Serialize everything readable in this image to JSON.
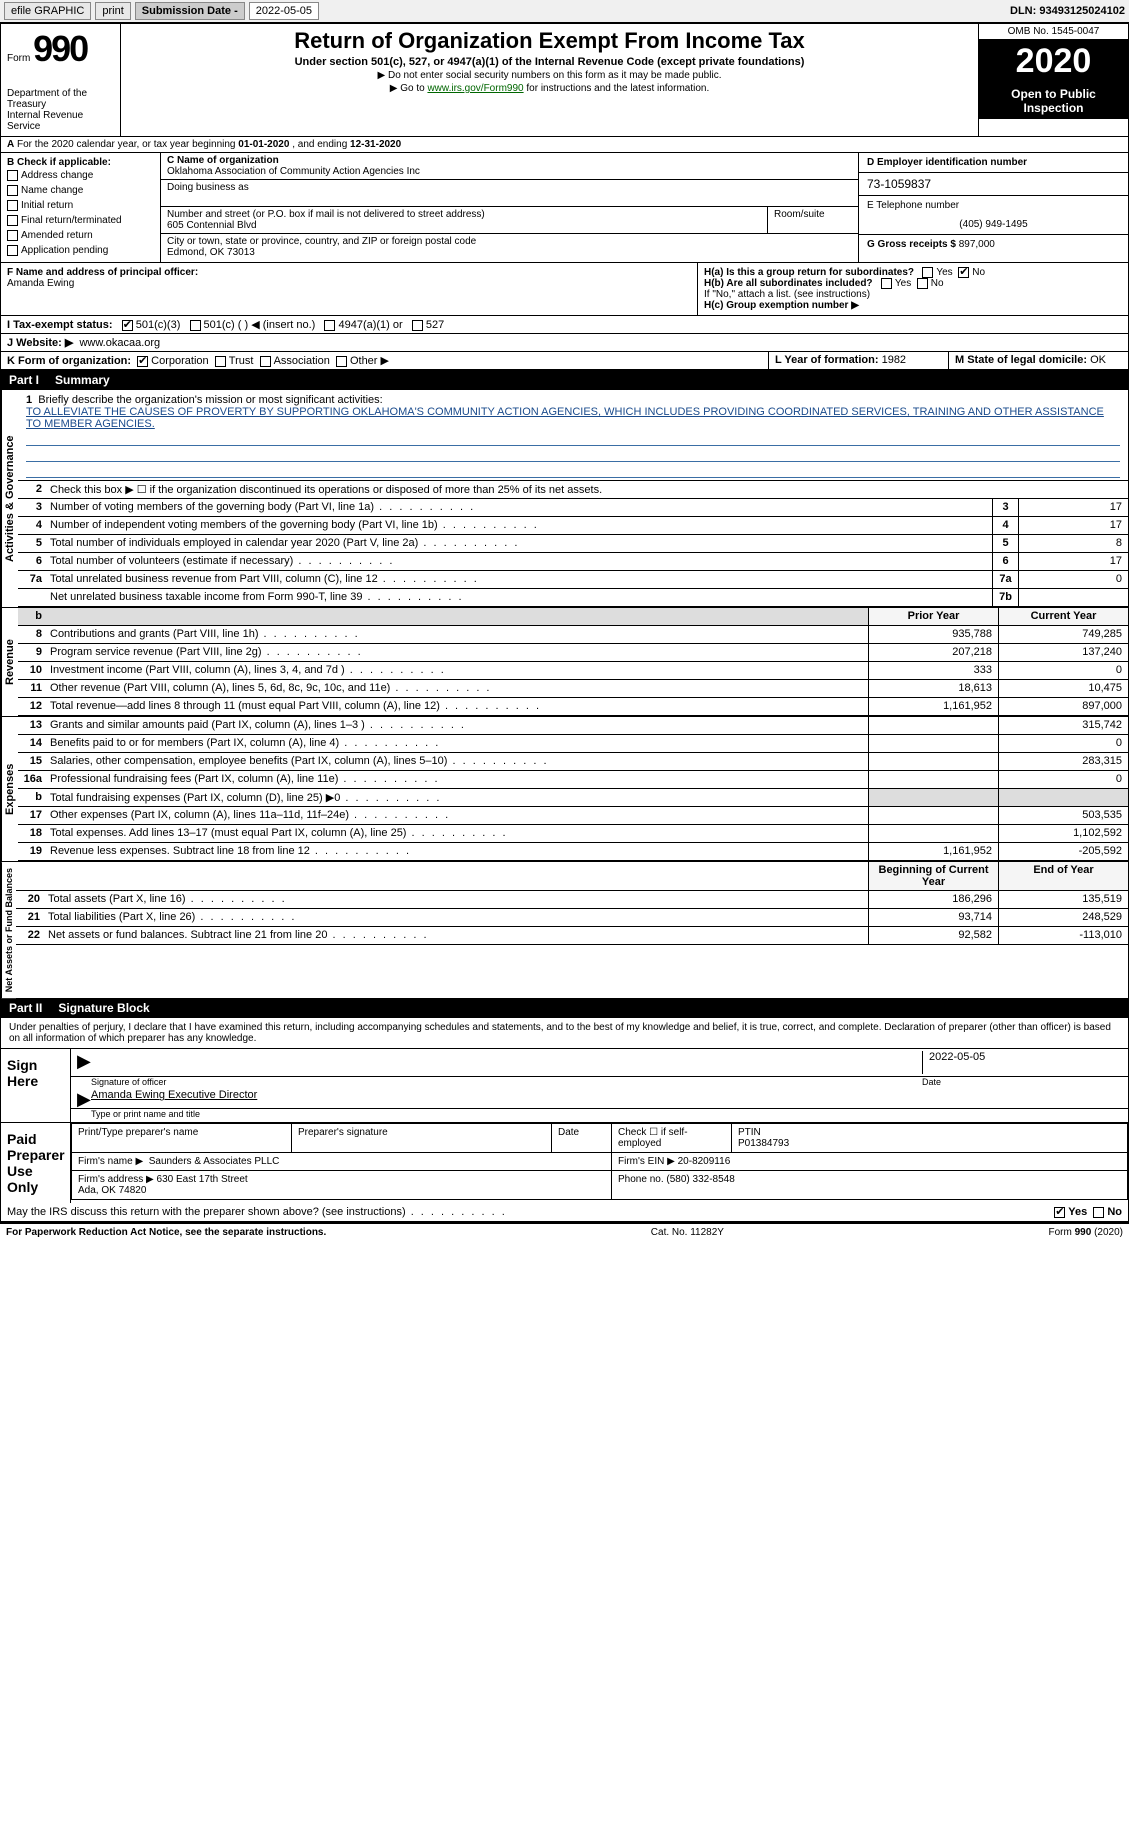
{
  "topbar": {
    "efile": "efile GRAPHIC",
    "print": "print",
    "sub_label": "Submission Date -",
    "sub_date": "2022-05-05",
    "dln_label": "DLN:",
    "dln": "93493125024102"
  },
  "header": {
    "form_word": "Form",
    "form_no": "990",
    "title": "Return of Organization Exempt From Income Tax",
    "subtitle": "Under section 501(c), 527, or 4947(a)(1) of the Internal Revenue Code (except private foundations)",
    "note1": "Do not enter social security numbers on this form as it may be made public.",
    "note2_pre": "Go to ",
    "note2_link": "www.irs.gov/Form990",
    "note2_post": " for instructions and the latest information.",
    "dept": "Department of the Treasury\nInternal Revenue Service",
    "omb": "OMB No. 1545-0047",
    "year": "2020",
    "inspect": "Open to Public Inspection"
  },
  "sectionA": {
    "text_pre": "For the 2020 calendar year, or tax year beginning ",
    "begin": "01-01-2020",
    "mid": " , and ending ",
    "end": "12-31-2020"
  },
  "boxB": {
    "label": "B Check if applicable:",
    "items": [
      "Address change",
      "Name change",
      "Initial return",
      "Final return/terminated",
      "Amended return",
      "Application pending"
    ]
  },
  "boxC": {
    "name_label": "C Name of organization",
    "name": "Oklahoma Association of Community Action Agencies Inc",
    "dba_label": "Doing business as",
    "dba": "",
    "street_label": "Number and street (or P.O. box if mail is not delivered to street address)",
    "room_label": "Room/suite",
    "street": "605 Contennial Blvd",
    "city_label": "City or town, state or province, country, and ZIP or foreign postal code",
    "city": "Edmond, OK  73013"
  },
  "boxD": {
    "label": "D Employer identification number",
    "ein": "73-1059837",
    "tel_label": "E Telephone number",
    "tel": "(405) 949-1495",
    "gross_label": "G Gross receipts $",
    "gross": "897,000"
  },
  "boxF": {
    "label": "F  Name and address of principal officer:",
    "name": "Amanda Ewing"
  },
  "boxH": {
    "a": "H(a)  Is this a group return for subordinates?",
    "b": "H(b)  Are all subordinates included?",
    "b_note": "If \"No,\" attach a list. (see instructions)",
    "c": "H(c)  Group exemption number ▶",
    "yes": "Yes",
    "no": "No"
  },
  "boxI": {
    "label": "I    Tax-exempt status:",
    "opts": [
      "501(c)(3)",
      "501(c) (   ) ◀ (insert no.)",
      "4947(a)(1) or",
      "527"
    ]
  },
  "boxJ": {
    "label": "J   Website: ▶",
    "val": "www.okacaa.org"
  },
  "boxK": {
    "label": "K Form of organization:",
    "opts": [
      "Corporation",
      "Trust",
      "Association",
      "Other ▶"
    ]
  },
  "boxL": {
    "label": "L Year of formation:",
    "val": "1982"
  },
  "boxM": {
    "label": "M State of legal domicile:",
    "val": "OK"
  },
  "part1": {
    "tab": "Part I",
    "title": "Summary",
    "gov_label": "Activities & Governance",
    "rev_label": "Revenue",
    "exp_label": "Expenses",
    "net_label": "Net Assets or Fund Balances",
    "q1_label": "Briefly describe the organization's mission or most significant activities:",
    "q1_text": "TO ALLEVIATE THE CAUSES OF PROVERTY BY SUPPORTING OKLAHOMA'S COMMUNITY ACTION AGENCIES, WHICH INCLUDES PROVIDING COORDINATED SERVICES, TRAINING AND OTHER ASSISTANCE TO MEMBER AGENCIES.",
    "q2": "Check this box ▶ ☐  if the organization discontinued its operations or disposed of more than 25% of its net assets.",
    "lines_gov": [
      {
        "n": "3",
        "t": "Number of voting members of the governing body (Part VI, line 1a)",
        "box": "3",
        "val": "17"
      },
      {
        "n": "4",
        "t": "Number of independent voting members of the governing body (Part VI, line 1b)",
        "box": "4",
        "val": "17"
      },
      {
        "n": "5",
        "t": "Total number of individuals employed in calendar year 2020 (Part V, line 2a)",
        "box": "5",
        "val": "8"
      },
      {
        "n": "6",
        "t": "Total number of volunteers (estimate if necessary)",
        "box": "6",
        "val": "17"
      },
      {
        "n": "7a",
        "t": "Total unrelated business revenue from Part VIII, column (C), line 12",
        "box": "7a",
        "val": "0"
      },
      {
        "n": "",
        "t": "Net unrelated business taxable income from Form 990-T, line 39",
        "box": "7b",
        "val": ""
      }
    ],
    "col_py": "Prior Year",
    "col_cy": "Current Year",
    "lines_rev": [
      {
        "n": "8",
        "t": "Contributions and grants (Part VIII, line 1h)",
        "py": "935,788",
        "cy": "749,285"
      },
      {
        "n": "9",
        "t": "Program service revenue (Part VIII, line 2g)",
        "py": "207,218",
        "cy": "137,240"
      },
      {
        "n": "10",
        "t": "Investment income (Part VIII, column (A), lines 3, 4, and 7d )",
        "py": "333",
        "cy": "0"
      },
      {
        "n": "11",
        "t": "Other revenue (Part VIII, column (A), lines 5, 6d, 8c, 9c, 10c, and 11e)",
        "py": "18,613",
        "cy": "10,475"
      },
      {
        "n": "12",
        "t": "Total revenue—add lines 8 through 11 (must equal Part VIII, column (A), line 12)",
        "py": "1,161,952",
        "cy": "897,000"
      }
    ],
    "lines_exp": [
      {
        "n": "13",
        "t": "Grants and similar amounts paid (Part IX, column (A), lines 1–3 )",
        "py": "",
        "cy": "315,742"
      },
      {
        "n": "14",
        "t": "Benefits paid to or for members (Part IX, column (A), line 4)",
        "py": "",
        "cy": "0"
      },
      {
        "n": "15",
        "t": "Salaries, other compensation, employee benefits (Part IX, column (A), lines 5–10)",
        "py": "",
        "cy": "283,315"
      },
      {
        "n": "16a",
        "t": "Professional fundraising fees (Part IX, column (A), line 11e)",
        "py": "",
        "cy": "0"
      },
      {
        "n": "b",
        "t": "Total fundraising expenses (Part IX, column (D), line 25) ▶0",
        "py": "shade",
        "cy": "shade"
      },
      {
        "n": "17",
        "t": "Other expenses (Part IX, column (A), lines 11a–11d, 11f–24e)",
        "py": "",
        "cy": "503,535"
      },
      {
        "n": "18",
        "t": "Total expenses. Add lines 13–17 (must equal Part IX, column (A), line 25)",
        "py": "",
        "cy": "1,102,592"
      },
      {
        "n": "19",
        "t": "Revenue less expenses. Subtract line 18 from line 12",
        "py": "1,161,952",
        "cy": "-205,592"
      }
    ],
    "col_boy": "Beginning of Current Year",
    "col_eoy": "End of Year",
    "lines_net": [
      {
        "n": "20",
        "t": "Total assets (Part X, line 16)",
        "py": "186,296",
        "cy": "135,519"
      },
      {
        "n": "21",
        "t": "Total liabilities (Part X, line 26)",
        "py": "93,714",
        "cy": "248,529"
      },
      {
        "n": "22",
        "t": "Net assets or fund balances. Subtract line 21 from line 20",
        "py": "92,582",
        "cy": "-113,010"
      }
    ]
  },
  "part2": {
    "tab": "Part II",
    "title": "Signature Block",
    "decl": "Under penalties of perjury, I declare that I have examined this return, including accompanying schedules and statements, and to the best of my knowledge and belief, it is true, correct, and complete. Declaration of preparer (other than officer) is based on all information of which preparer has any knowledge.",
    "sign_here": "Sign Here",
    "sig_officer": "Signature of officer",
    "sig_date": "2022-05-05",
    "date_lbl": "Date",
    "name_title": "Amanda Ewing  Executive Director",
    "type_lbl": "Type or print name and title",
    "paid": "Paid Preparer Use Only",
    "prep_name_lbl": "Print/Type preparer's name",
    "prep_sig_lbl": "Preparer's signature",
    "prep_date_lbl": "Date",
    "prep_check": "Check ☐ if self-employed",
    "ptin_lbl": "PTIN",
    "ptin": "P01384793",
    "firm_name_lbl": "Firm's name   ▶",
    "firm_name": "Saunders & Associates PLLC",
    "firm_ein_lbl": "Firm's EIN ▶",
    "firm_ein": "20-8209116",
    "firm_addr_lbl": "Firm's address ▶",
    "firm_addr": "630 East 17th Street\nAda, OK  74820",
    "firm_phone_lbl": "Phone no.",
    "firm_phone": "(580) 332-8548",
    "discuss": "May the IRS discuss this return with the preparer shown above? (see instructions)",
    "discuss_yes": "Yes",
    "discuss_no": "No"
  },
  "footer": {
    "pra": "For Paperwork Reduction Act Notice, see the separate instructions.",
    "cat": "Cat. No. 11282Y",
    "form": "Form 990 (2020)"
  }
}
